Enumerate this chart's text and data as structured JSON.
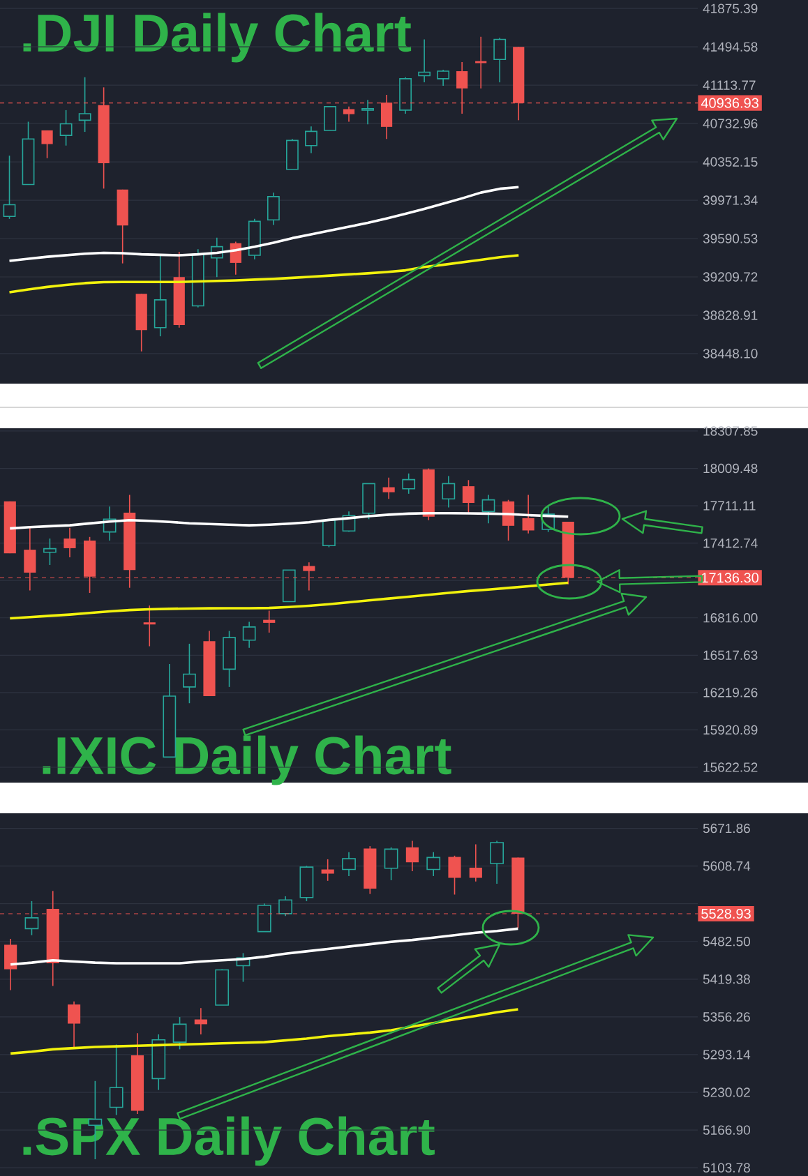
{
  "chart_data": [
    {
      "type": "candlestick",
      "annotations": [
        ".DJI Daily Chart"
      ],
      "tick_labels": "y",
      "grid": "y",
      "categories": [
        null,
        null,
        null,
        null,
        null,
        null,
        null,
        null,
        null,
        null,
        null,
        null,
        null,
        null,
        null,
        null,
        null,
        null,
        null,
        null,
        null,
        null,
        null,
        null,
        null,
        null,
        null,
        null,
        null,
        null,
        null,
        null,
        null,
        null,
        null,
        null,
        null
      ],
      "ohlc": [
        [
          39811,
          40414,
          39786,
          39927
        ],
        [
          40128,
          40751,
          40128,
          40580
        ],
        [
          40665,
          40665,
          40389,
          40529
        ],
        [
          40615,
          40866,
          40514,
          40730
        ],
        [
          40766,
          41193,
          40650,
          40831
        ],
        [
          40916,
          41092,
          40087,
          40339
        ],
        [
          40077,
          40077,
          39344,
          39721
        ],
        [
          39042,
          39042,
          38470,
          38681
        ],
        [
          38706,
          39434,
          38620,
          38982
        ],
        [
          39208,
          39459,
          38706,
          38731
        ],
        [
          38922,
          39485,
          38907,
          39434
        ],
        [
          39399,
          39600,
          39208,
          39510
        ],
        [
          39545,
          39560,
          39233,
          39349
        ],
        [
          39424,
          39786,
          39384,
          39761
        ],
        [
          39776,
          40047,
          39726,
          40007
        ],
        [
          40278,
          40580,
          40278,
          40565
        ],
        [
          40514,
          40705,
          40439,
          40655
        ],
        [
          40665,
          40901,
          40665,
          40901
        ],
        [
          40876,
          40901,
          40751,
          40826
        ],
        [
          40866,
          40967,
          40725,
          40881
        ],
        [
          40941,
          41017,
          40580,
          40700
        ],
        [
          40866,
          41193,
          40831,
          41178
        ],
        [
          41208,
          41569,
          41142,
          41243
        ],
        [
          41178,
          41268,
          41107,
          41253
        ],
        [
          41253,
          41343,
          40831,
          41082
        ],
        [
          41353,
          41595,
          41082,
          41333
        ],
        [
          41369,
          41585,
          41142,
          41569
        ],
        [
          41494,
          41494,
          40766,
          40936.93
        ],
        null,
        null,
        null,
        null,
        null,
        null,
        null,
        null,
        null
      ],
      "series": [
        {
          "type": "line",
          "color": "#ffffff",
          "values": [
            39369,
            39390,
            39410,
            39425,
            39440,
            39449,
            39445,
            39434,
            39429,
            39424,
            39434,
            39449,
            39475,
            39510,
            39550,
            39595,
            39632,
            39670,
            39708,
            39746,
            39790,
            39836,
            39885,
            39937,
            39990,
            40047,
            40085,
            40102,
            null,
            null,
            null,
            null,
            null,
            null,
            null,
            null,
            null
          ]
        },
        {
          "type": "line",
          "color": "#f2f20d",
          "values": [
            39057,
            39085,
            39110,
            39130,
            39148,
            39158,
            39160,
            39160,
            39160,
            39160,
            39165,
            39170,
            39175,
            39183,
            39190,
            39200,
            39212,
            39223,
            39235,
            39245,
            39258,
            39275,
            39309,
            39330,
            39355,
            39380,
            39405,
            39424,
            null,
            null,
            null,
            null,
            null,
            null,
            null,
            null,
            null
          ]
        }
      ],
      "ylim": [
        38150,
        41960
      ],
      "yticks": [
        {
          "value": 38448.1,
          "label": "38448.10"
        },
        {
          "value": 38828.91,
          "label": "38828.91"
        },
        {
          "value": 39209.72,
          "label": "39209.72"
        },
        {
          "value": 39590.53,
          "label": "39590.53"
        },
        {
          "value": 39971.34,
          "label": "39971.34"
        },
        {
          "value": 40352.15,
          "label": "40352.15"
        },
        {
          "value": 40732.96,
          "label": "40732.96"
        },
        {
          "value": 41113.77,
          "label": "41113.77"
        },
        {
          "value": 41494.58,
          "label": "41494.58"
        },
        {
          "value": 41875.39,
          "label": "41875.39"
        }
      ],
      "ref_lines": [
        {
          "axis": "y",
          "value": 40936.93,
          "label": "40936.93",
          "color": "#ef5350",
          "line_style": "dashed"
        }
      ]
    },
    {
      "type": "candlestick",
      "annotations": [
        ".IXIC Daily Chart"
      ],
      "tick_labels": "y",
      "grid": "y",
      "categories": [
        null,
        null,
        null,
        null,
        null,
        null,
        null,
        null,
        null,
        null,
        null,
        null,
        null,
        null,
        null,
        null,
        null,
        null,
        null,
        null,
        null,
        null,
        null,
        null,
        null,
        null,
        null,
        null,
        null,
        null,
        null,
        null,
        null,
        null,
        null
      ],
      "ohlc": [
        [
          17746,
          17746,
          17332,
          17332
        ],
        [
          17360,
          17543,
          17035,
          17177
        ],
        [
          17340,
          17449,
          17238,
          17368
        ],
        [
          17449,
          17535,
          17299,
          17372
        ],
        [
          17433,
          17462,
          17015,
          17145
        ],
        [
          17502,
          17705,
          17433,
          17604
        ],
        [
          17656,
          17798,
          17056,
          17198
        ],
        [
          16780,
          16914,
          16589,
          16763
        ],
        [
          15704,
          16447,
          15704,
          16191
        ],
        [
          16264,
          16609,
          16134,
          16366
        ],
        [
          16629,
          16711,
          16191,
          16191
        ],
        [
          16406,
          16711,
          16264,
          16658
        ],
        [
          16638,
          16784,
          16577,
          16743
        ],
        [
          16800,
          16873,
          16698,
          16776
        ],
        [
          16946,
          17198,
          16946,
          17198
        ],
        [
          17230,
          17259,
          17035,
          17190
        ],
        [
          17393,
          17604,
          17380,
          17596
        ],
        [
          17510,
          17665,
          17502,
          17632
        ],
        [
          17652,
          17888,
          17604,
          17888
        ],
        [
          17859,
          17936,
          17766,
          17819
        ],
        [
          17847,
          17969,
          17807,
          17920
        ],
        [
          18001,
          18009,
          17596,
          17624
        ],
        [
          17766,
          17949,
          17697,
          17888
        ],
        [
          17867,
          17916,
          17644,
          17734
        ],
        [
          17665,
          17798,
          17571,
          17758
        ],
        [
          17746,
          17758,
          17433,
          17551
        ],
        [
          17612,
          17798,
          17490,
          17514
        ],
        [
          17522,
          17713,
          17502,
          17644
        ],
        [
          17583,
          17583,
          17084,
          17136.3
        ],
        null,
        null,
        null,
        null,
        null,
        null
      ],
      "series": [
        {
          "type": "line",
          "color": "#ffffff",
          "values": [
            17530,
            17540,
            17548,
            17555,
            17570,
            17585,
            17596,
            17590,
            17582,
            17571,
            17565,
            17560,
            17555,
            17560,
            17568,
            17579,
            17598,
            17612,
            17628,
            17640,
            17648,
            17652,
            17652,
            17650,
            17648,
            17645,
            17636,
            17630,
            17624,
            null,
            null,
            null,
            null,
            null,
            null
          ]
        },
        {
          "type": "line",
          "color": "#f2f20d",
          "values": [
            16812,
            16822,
            16832,
            16842,
            16855,
            16868,
            16878,
            16884,
            16888,
            16890,
            16892,
            16893,
            16893,
            16895,
            16902,
            16912,
            16925,
            16940,
            16955,
            16970,
            16985,
            17000,
            17015,
            17030,
            17042,
            17055,
            17068,
            17082,
            17096,
            null,
            null,
            null,
            null,
            null,
            null
          ]
        }
      ],
      "ylim": [
        15500,
        18330
      ],
      "yticks": [
        {
          "value": 15622.52,
          "label": "15622.52"
        },
        {
          "value": 15920.89,
          "label": "15920.89"
        },
        {
          "value": 16219.26,
          "label": "16219.26"
        },
        {
          "value": 16517.63,
          "label": "16517.63"
        },
        {
          "value": 16816.0,
          "label": "16816.00"
        },
        {
          "value": 17114.37,
          "label": null
        },
        {
          "value": 17412.74,
          "label": "17412.74"
        },
        {
          "value": 17711.11,
          "label": "17711.11"
        },
        {
          "value": 18009.48,
          "label": "18009.48"
        },
        {
          "value": 18307.85,
          "label": "18307.85"
        }
      ],
      "ref_lines": [
        {
          "axis": "y",
          "value": 17136.3,
          "label": "17136.30",
          "color": "#ef5350",
          "line_style": "dashed"
        }
      ]
    },
    {
      "type": "candlestick",
      "annotations": [
        ".SPX Daily Chart"
      ],
      "tick_labels": "y",
      "grid": "y",
      "categories": [
        null,
        null,
        null,
        null,
        null,
        null,
        null,
        null,
        null,
        null,
        null,
        null,
        null,
        null,
        null,
        null,
        null,
        null,
        null,
        null,
        null,
        null,
        null,
        null,
        null,
        null,
        null,
        null,
        null,
        null,
        null,
        null,
        null
      ],
      "ohlc": [
        [
          5477,
          5487,
          5401,
          5436
        ],
        [
          5504,
          5550,
          5493,
          5522
        ],
        [
          5537,
          5567,
          5408,
          5446
        ],
        [
          5377,
          5382,
          5306,
          5345
        ],
        [
          5175,
          5249,
          5118,
          5185
        ],
        [
          5205,
          5310,
          5192,
          5238
        ],
        [
          5292,
          5329,
          5194,
          5199
        ],
        [
          5253,
          5327,
          5234,
          5318
        ],
        [
          5314,
          5356,
          5302,
          5344
        ],
        [
          5352,
          5371,
          5327,
          5344
        ],
        [
          5376,
          5436,
          5376,
          5435
        ],
        [
          5442,
          5463,
          5415,
          5455
        ],
        [
          5499,
          5546,
          5499,
          5543
        ],
        [
          5529,
          5558,
          5525,
          5552
        ],
        [
          5556,
          5609,
          5550,
          5607
        ],
        [
          5603,
          5620,
          5584,
          5596
        ],
        [
          5603,
          5632,
          5592,
          5621
        ],
        [
          5638,
          5642,
          5562,
          5571
        ],
        [
          5605,
          5640,
          5585,
          5637
        ],
        [
          5640,
          5651,
          5600,
          5615
        ],
        [
          5603,
          5632,
          5592,
          5623
        ],
        [
          5624,
          5626,
          5561,
          5589
        ],
        [
          5606,
          5645,
          5583,
          5589
        ],
        [
          5613,
          5651,
          5579,
          5648
        ],
        [
          5623,
          5623,
          5505,
          5528.93
        ],
        null,
        null,
        null,
        null,
        null,
        null,
        null,
        null
      ],
      "series": [
        {
          "type": "line",
          "color": "#ffffff",
          "values": [
            5444,
            5447,
            5451,
            5449,
            5447,
            5446,
            5446,
            5446,
            5446,
            5449,
            5451,
            5453,
            5457,
            5462,
            5466,
            5470,
            5474,
            5478,
            5482,
            5485,
            5489,
            5493,
            5497,
            5500,
            5504,
            null,
            null,
            null,
            null,
            null,
            null,
            null,
            null
          ]
        },
        {
          "type": "line",
          "color": "#f2f20d",
          "values": [
            5295,
            5298,
            5302,
            5304,
            5306,
            5307,
            5308,
            5309,
            5310,
            5311,
            5312,
            5313,
            5314,
            5317,
            5320,
            5324,
            5327,
            5330,
            5334,
            5340,
            5346,
            5352,
            5358,
            5364,
            5369,
            null,
            null,
            null,
            null,
            null,
            null,
            null,
            null
          ]
        }
      ],
      "ylim": [
        5090,
        5697
      ],
      "yticks": [
        {
          "value": 5103.78,
          "label": "5103.78"
        },
        {
          "value": 5166.9,
          "label": "5166.90"
        },
        {
          "value": 5230.02,
          "label": "5230.02"
        },
        {
          "value": 5293.14,
          "label": "5293.14"
        },
        {
          "value": 5356.26,
          "label": "5356.26"
        },
        {
          "value": 5419.38,
          "label": "5419.38"
        },
        {
          "value": 5482.5,
          "label": "5482.50"
        },
        {
          "value": 5545.62,
          "label": null
        },
        {
          "value": 5608.74,
          "label": "5608.74"
        },
        {
          "value": 5671.86,
          "label": "5671.86"
        }
      ],
      "ref_lines": [
        {
          "axis": "y",
          "value": 5528.93,
          "label": "5528.93",
          "color": "#ef5350",
          "line_style": "dashed"
        }
      ]
    }
  ]
}
